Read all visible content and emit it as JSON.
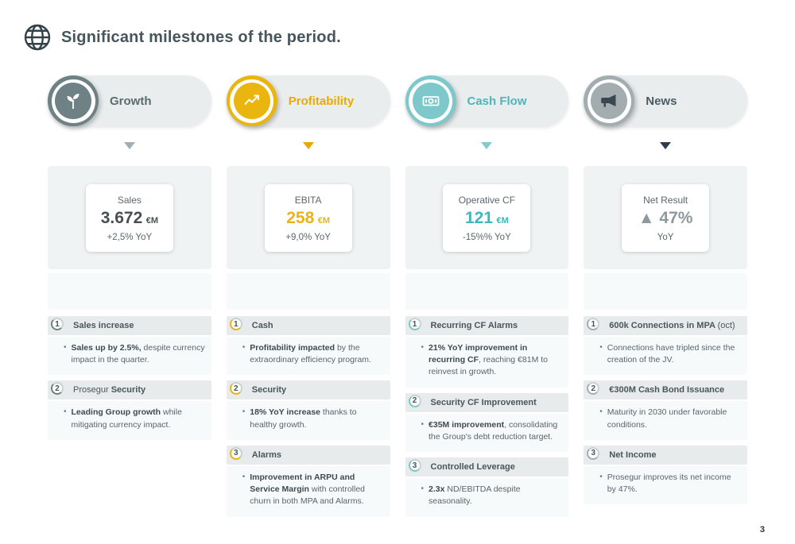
{
  "page": {
    "title": "Significant milestones of the period.",
    "page_number": "3"
  },
  "columns": [
    {
      "label": "Growth",
      "accent": "#6e8184",
      "label_color": "#5d6b6e",
      "triangle_color": "#9fb0b2",
      "glyph_color": "#ffffff",
      "icon": "plant-icon",
      "metric": {
        "title": "Sales",
        "value": "3.672",
        "unit": "€M",
        "delta": "+2,5% YoY",
        "value_color": "#474f53"
      },
      "items": [
        {
          "num": "1",
          "header": [
            {
              "text": "Sales increase",
              "bold": true
            }
          ],
          "body": [
            {
              "text": "Sales up by 2.5%,",
              "bold": true
            },
            {
              "text": " despite currency impact in the quarter.",
              "bold": false
            }
          ]
        },
        {
          "num": "2",
          "header": [
            {
              "text": "Prosegur ",
              "bold": false
            },
            {
              "text": "Security",
              "bold": true
            }
          ],
          "body": [
            {
              "text": "Leading Group growth",
              "bold": true
            },
            {
              "text": " while mitigating currency impact.",
              "bold": false
            }
          ]
        }
      ]
    },
    {
      "label": "Profitability",
      "accent": "#e9b50e",
      "label_color": "#eaaa00",
      "triangle_color": "#eba600",
      "glyph_color": "#ffffff",
      "icon": "trend-chart-icon",
      "metric": {
        "title": "EBITA",
        "value": "258",
        "unit": "€M",
        "delta": "+9,0% YoY",
        "value_color": "#ecb21a"
      },
      "items": [
        {
          "num": "1",
          "header": [
            {
              "text": "Cash",
              "bold": true
            }
          ],
          "body": [
            {
              "text": "Profitability impacted",
              "bold": true
            },
            {
              "text": " by the extraordinary efficiency program.",
              "bold": false
            }
          ]
        },
        {
          "num": "2",
          "header": [
            {
              "text": "Security",
              "bold": true
            }
          ],
          "body": [
            {
              "text": "18% YoY increase",
              "bold": true
            },
            {
              "text": " thanks to healthy growth.",
              "bold": false
            }
          ]
        },
        {
          "num": "3",
          "header": [
            {
              "text": "Alarms",
              "bold": true
            }
          ],
          "body": [
            {
              "text": "Improvement in ARPU and Service Margin",
              "bold": true
            },
            {
              "text": " with controlled churn in both MPA and Alarms.",
              "bold": false
            }
          ]
        }
      ]
    },
    {
      "label": "Cash Flow",
      "accent": "#7cc8cb",
      "label_color": "#4db6bb",
      "triangle_color": "#85cbcd",
      "glyph_color": "#ffffff",
      "icon": "cash-icon",
      "metric": {
        "title": "Operative CF",
        "value": "121",
        "unit": "€M",
        "delta": "-15%% YoY",
        "value_color": "#3fb6ba"
      },
      "items": [
        {
          "num": "1",
          "header": [
            {
              "text": "Recurring CF Alarms",
              "bold": true
            }
          ],
          "body": [
            {
              "text": "21% YoY improvement in recurring CF",
              "bold": true
            },
            {
              "text": ", reaching €81M to reinvest in growth.",
              "bold": false
            }
          ]
        },
        {
          "num": "2",
          "header": [
            {
              "text": "Security CF Improvement",
              "bold": true
            }
          ],
          "body": [
            {
              "text": "€35M improvement",
              "bold": true
            },
            {
              "text": ", consolidating the Group's debt reduction target.",
              "bold": false
            }
          ]
        },
        {
          "num": "3",
          "header": [
            {
              "text": "Controlled Leverage",
              "bold": true
            }
          ],
          "body": [
            {
              "text": "2.3x",
              "bold": true
            },
            {
              "text": " ND/EBITDA despite seasonality.",
              "bold": false
            }
          ]
        }
      ]
    },
    {
      "label": "News",
      "accent": "#a3adb0",
      "label_color": "#4c5b63",
      "triangle_color": "#2e3b4b",
      "glyph_color": "#3a4750",
      "icon": "megaphone-icon",
      "metric": {
        "title": "Net Result",
        "value": "▲ 47%",
        "unit": "",
        "delta": "YoY",
        "value_color": "#8f999d"
      },
      "items": [
        {
          "num": "1",
          "header": [
            {
              "text": "600k Connections in MPA ",
              "bold": true
            },
            {
              "text": "(oct)",
              "bold": false
            }
          ],
          "body": [
            {
              "text": "Connections have tripled since the creation of the JV.",
              "bold": false
            }
          ]
        },
        {
          "num": "2",
          "header": [
            {
              "text": "€300M Cash Bond Issuance",
              "bold": true
            }
          ],
          "body": [
            {
              "text": "Maturity in 2030 under favorable conditions.",
              "bold": false
            }
          ]
        },
        {
          "num": "3",
          "header": [
            {
              "text": "Net Income",
              "bold": true
            }
          ],
          "body": [
            {
              "text": "Prosegur improves its net income by 47%.",
              "bold": false
            }
          ]
        }
      ]
    }
  ]
}
